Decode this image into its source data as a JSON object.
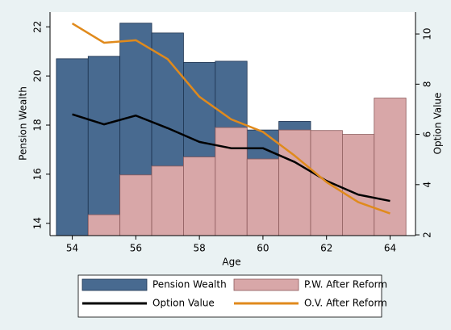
{
  "chart_data": {
    "type": "combo",
    "x": [
      54,
      55,
      56,
      57,
      58,
      59,
      60,
      61,
      62,
      63,
      64
    ],
    "xlabel": "Age",
    "ylabel": "Pension Wealth",
    "y2label": "Option Value",
    "xlim": [
      53.3,
      64.8
    ],
    "xticks": [
      54,
      56,
      58,
      60,
      62,
      64
    ],
    "ylim": [
      13.5,
      22.6
    ],
    "yticks": [
      14,
      16,
      18,
      20,
      22
    ],
    "y2lim": [
      1.97,
      10.87
    ],
    "y2ticks": [
      2,
      4,
      6,
      8,
      10
    ],
    "grid": false,
    "legend": "bottom",
    "series": [
      {
        "name": "Pension Wealth",
        "type": "bar",
        "color": "#486a90",
        "edgecolor": "#1d3350",
        "values": [
          20.7,
          20.8,
          22.15,
          21.75,
          20.55,
          20.6,
          17.8,
          18.15,
          null,
          null,
          null
        ]
      },
      {
        "name": "P.W. After Reform",
        "type": "bar",
        "color": "#d8a7a8",
        "edgecolor": "#8c5a5b",
        "values": [
          null,
          14.35,
          15.97,
          16.33,
          16.7,
          17.9,
          16.62,
          17.8,
          17.78,
          17.62,
          19.1
        ]
      },
      {
        "name": "Option Value",
        "type": "line",
        "axis": "y2",
        "color": "#000000",
        "values": [
          6.8,
          6.4,
          6.75,
          6.25,
          5.7,
          5.45,
          5.45,
          4.9,
          4.15,
          3.6,
          3.35
        ]
      },
      {
        "name": "O.V. After Reform",
        "type": "line",
        "axis": "y2",
        "color": "#e08a1c",
        "values": [
          10.42,
          9.65,
          9.75,
          9.0,
          7.5,
          6.6,
          6.1,
          5.15,
          4.1,
          3.3,
          2.85
        ]
      }
    ]
  }
}
